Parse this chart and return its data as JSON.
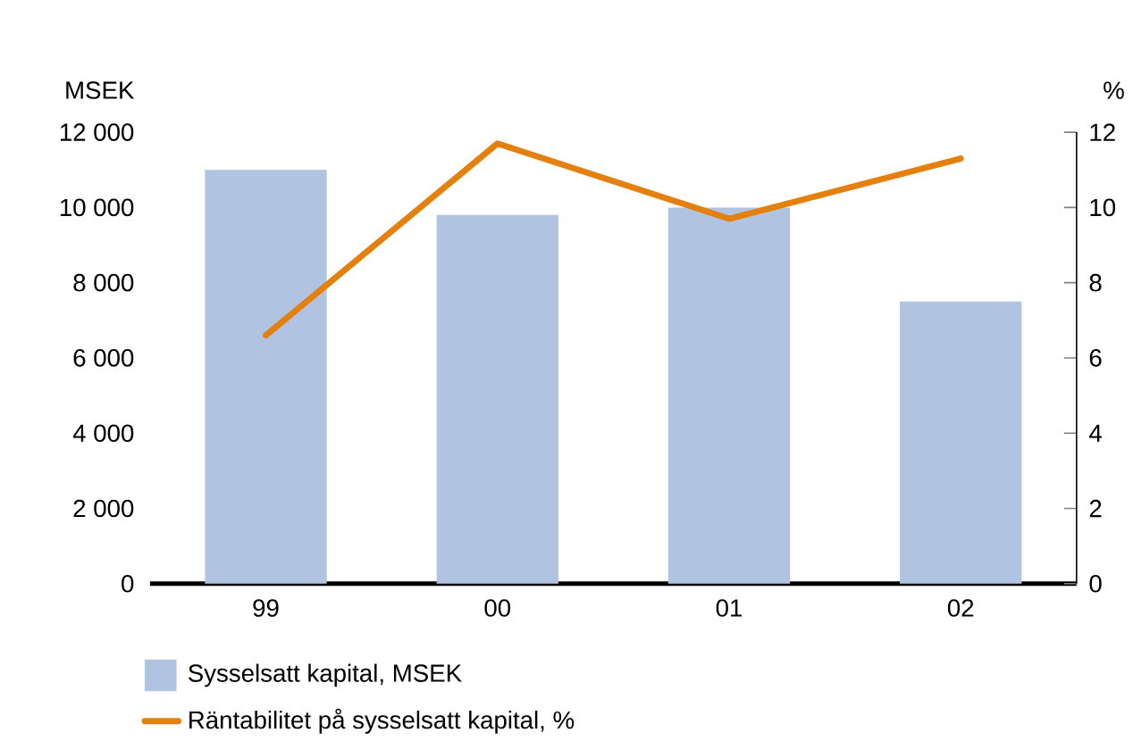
{
  "chart_data": {
    "type": "bar",
    "ylabel": "MSEK",
    "y2label": "%",
    "categories": [
      "99",
      "00",
      "01",
      "02"
    ],
    "series": [
      {
        "name": "Sysselsatt kapital, MSEK",
        "color": "#b0c4e2",
        "values": [
          11000,
          9800,
          10000,
          7500
        ]
      },
      {
        "name": "Räntabilitet på sysselsatt kapital, %",
        "type": "line",
        "axis": "y2",
        "color": "#e3800e",
        "values": [
          6.6,
          11.7,
          9.7,
          11.3
        ]
      }
    ],
    "ylim": [
      0,
      12000
    ],
    "yticks": [
      0,
      {
        "value": 2000,
        "label": "2 000"
      },
      {
        "value": 4000,
        "label": "4 000"
      },
      {
        "value": 6000,
        "label": "6 000"
      },
      {
        "value": 8000,
        "label": "8 000"
      },
      {
        "value": 10000,
        "label": "10 000"
      },
      {
        "value": 12000,
        "label": "12 000"
      }
    ],
    "y2lim": [
      0,
      12
    ],
    "y2ticks": [
      0,
      2,
      4,
      6,
      8,
      10,
      12
    ],
    "legend": "bottom"
  }
}
